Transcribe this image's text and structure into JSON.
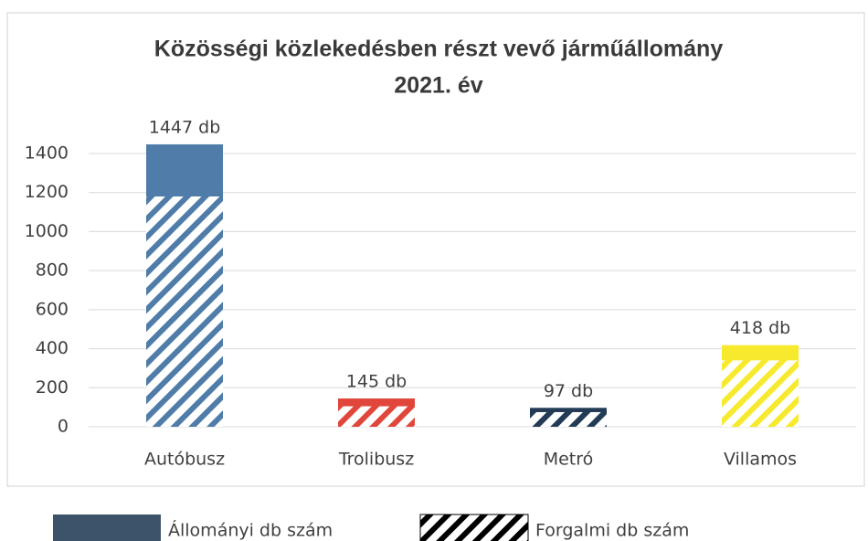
{
  "chart_data": {
    "type": "bar",
    "title": "Közösségi közlekedésben részt vevő járműállomány",
    "subtitle": "2021. év",
    "categories": [
      "Autóbusz",
      "Trolibusz",
      "Metró",
      "Villamos"
    ],
    "category_colors": [
      "#4f7ca8",
      "#e0463a",
      "#243b55",
      "#f7ea2e"
    ],
    "series": [
      {
        "name": "Állományi db szám",
        "color": "#3d5369",
        "values": [
          1447,
          145,
          97,
          418
        ],
        "value_labels": [
          "1447 db",
          "145 db",
          "97 db",
          "418 db"
        ]
      },
      {
        "name": "Forgalmi db szám",
        "color": "#000000",
        "hatched": true,
        "values": [
          1180,
          105,
          75,
          340
        ]
      }
    ],
    "ylim": [
      0,
      1400
    ],
    "yticks": [
      0,
      200,
      400,
      600,
      800,
      1000,
      1200,
      1400
    ],
    "grid": true
  }
}
